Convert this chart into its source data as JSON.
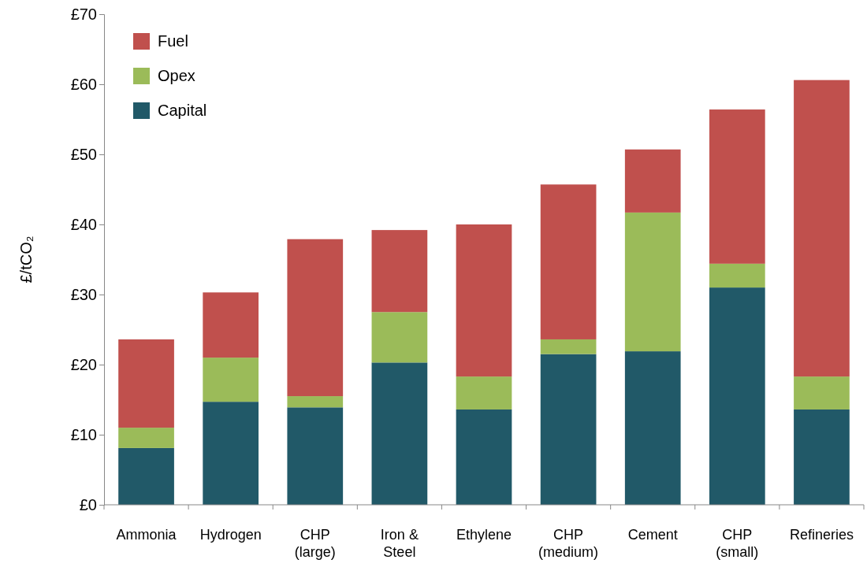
{
  "chart_data": {
    "type": "bar",
    "stacked": true,
    "ylabel": "£/tCO₂",
    "categories": [
      "Ammonia",
      "Hydrogen",
      "CHP (large)",
      "Iron & Steel",
      "Ethylene",
      "CHP (medium)",
      "Cement",
      "CHP (small)",
      "Refineries"
    ],
    "series": [
      {
        "name": "Capital",
        "color": "#215968",
        "values": [
          8.1,
          14.7,
          13.9,
          20.3,
          13.6,
          21.5,
          21.9,
          31.0,
          13.6
        ]
      },
      {
        "name": "Opex",
        "color": "#9bbb59",
        "values": [
          2.9,
          6.3,
          1.6,
          7.2,
          4.7,
          2.1,
          19.8,
          3.4,
          4.7
        ]
      },
      {
        "name": "Fuel",
        "color": "#c0504d",
        "values": [
          12.6,
          9.3,
          22.4,
          11.7,
          21.7,
          22.1,
          9.0,
          22.0,
          42.3
        ]
      }
    ],
    "ylim": [
      0,
      70
    ],
    "yticks": [
      {
        "value": 0,
        "label": "£0"
      },
      {
        "value": 10,
        "label": "£10"
      },
      {
        "value": 20,
        "label": "£20"
      },
      {
        "value": 30,
        "label": "£30"
      },
      {
        "value": 40,
        "label": "£40"
      },
      {
        "value": 50,
        "label": "£50"
      },
      {
        "value": 60,
        "label": "£60"
      },
      {
        "value": 70,
        "label": "£70"
      }
    ],
    "grid": false,
    "legend": "top left"
  }
}
